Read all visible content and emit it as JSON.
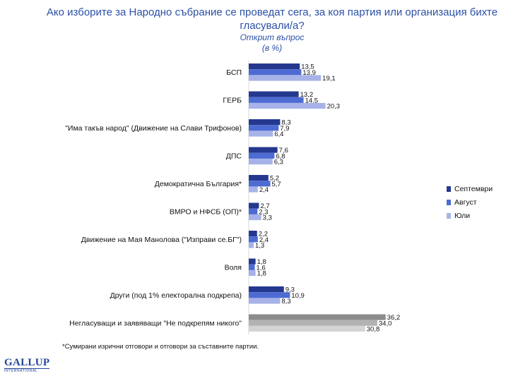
{
  "slide": {
    "title": "Ако изборите за Народно събрание се проведат сега, за коя партия или организация бихте гласували/а?",
    "subtitle_line1": "Открит въпрос",
    "subtitle_line2": "(в %)",
    "footnote": "*Сумирани изрични отговори и отговори за съставните партии.",
    "logo_text": "GALLUP",
    "logo_subtext": "INTERNATIONAL"
  },
  "chart_data": {
    "type": "bar",
    "orientation": "horizontal",
    "title": "Ако изборите за Народно събрание се проведат сега, за коя партия или организация бихте гласували/а?",
    "subtitle": "Открит въпрос (в %)",
    "categories": [
      "БСП",
      "ГЕРБ",
      "\"Има такъв народ\" (Движение на Слави Трифонов)",
      "ДПС",
      "Демократична България*",
      "ВМРО и НФСБ (ОП)*",
      "Движение на Мая Манолова (\"Изправи се.БГ\")",
      "Воля",
      "Други (под 1% електорална подкрепа)",
      "Негласуващи и заявяващи \"Не подкрепям никого\""
    ],
    "series": [
      {
        "name": "Септември",
        "color": "#25388f",
        "values": [
          13.5,
          13.2,
          8.3,
          7.6,
          5.2,
          2.7,
          2.2,
          1.8,
          9.3,
          36.2
        ],
        "labels": [
          "13,5",
          "13,2",
          "8,3",
          "7,6",
          "5,2",
          "2,7",
          "2,2",
          "1,8",
          "9,3",
          "36,2"
        ]
      },
      {
        "name": "Август",
        "color": "#4d6bd2",
        "values": [
          13.9,
          14.5,
          7.9,
          6.8,
          5.7,
          2.3,
          2.4,
          1.6,
          10.9,
          34.0
        ],
        "labels": [
          "13,9",
          "14,5",
          "7,9",
          "6,8",
          "5,7",
          "2,3",
          "2,4",
          "1,6",
          "10,9",
          "34,0"
        ]
      },
      {
        "name": "Юли",
        "color": "#a7b3e8",
        "values": [
          19.1,
          20.3,
          6.4,
          6.3,
          2.4,
          3.3,
          1.3,
          1.8,
          8.3,
          30.8
        ],
        "labels": [
          "19,1",
          "20,3",
          "6,4",
          "6,3",
          "2,4",
          "3,3",
          "1,3",
          "1,8",
          "8,3",
          "30,8"
        ]
      }
    ],
    "gray_series_colors": [
      "#8c8c8c",
      "#b3b3b3",
      "#d4d4d4"
    ],
    "legend_position": "right",
    "grid": false,
    "xlim": [
      0,
      40
    ]
  }
}
